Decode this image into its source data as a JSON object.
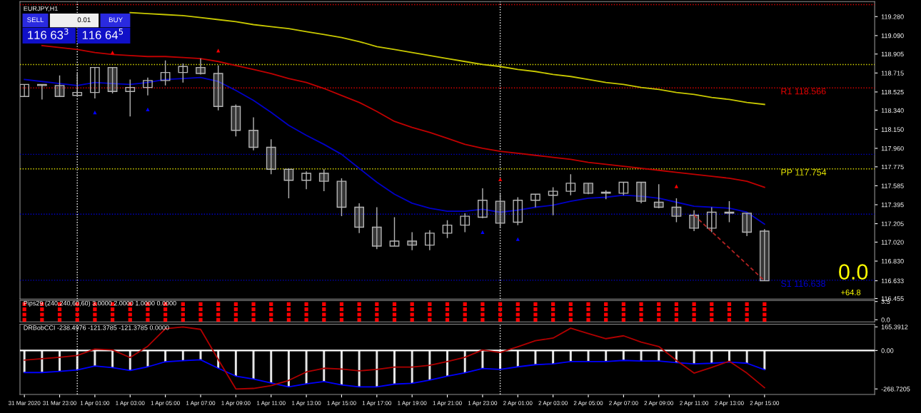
{
  "chart_data": [
    {
      "type": "candlestick",
      "title": "EURJPY,H1",
      "color": "#b4b4b4",
      "x": [
        "2020-03-31T21:00",
        "2020-03-31T22:00",
        "2020-03-31T23:00",
        "2020-04-01T00:00",
        "2020-04-01T01:00",
        "2020-04-01T02:00",
        "2020-04-01T03:00",
        "2020-04-01T04:00",
        "2020-04-01T05:00",
        "2020-04-01T06:00",
        "2020-04-01T07:00",
        "2020-04-01T08:00",
        "2020-04-01T09:00",
        "2020-04-01T10:00",
        "2020-04-01T11:00",
        "2020-04-01T12:00",
        "2020-04-01T13:00",
        "2020-04-01T14:00",
        "2020-04-01T15:00",
        "2020-04-01T16:00",
        "2020-04-01T17:00",
        "2020-04-01T18:00",
        "2020-04-01T19:00",
        "2020-04-01T20:00",
        "2020-04-01T21:00",
        "2020-04-01T22:00",
        "2020-04-01T23:00",
        "2020-04-02T00:00",
        "2020-04-02T01:00",
        "2020-04-02T02:00",
        "2020-04-02T03:00",
        "2020-04-02T04:00",
        "2020-04-02T05:00",
        "2020-04-02T06:00",
        "2020-04-02T07:00",
        "2020-04-02T08:00",
        "2020-04-02T09:00",
        "2020-04-02T10:00",
        "2020-04-02T11:00",
        "2020-04-02T12:00",
        "2020-04-02T13:00",
        "2020-04-02T14:00",
        "2020-04-02T15:00"
      ],
      "ohlc": [
        [
          118.48,
          118.6,
          118.48,
          118.6
        ],
        [
          118.6,
          118.6,
          118.45,
          118.59
        ],
        [
          118.59,
          118.69,
          118.48,
          118.48
        ],
        [
          118.49,
          118.71,
          118.49,
          118.52
        ],
        [
          118.52,
          118.77,
          118.46,
          118.77
        ],
        [
          118.77,
          118.77,
          118.51,
          118.53
        ],
        [
          118.53,
          118.65,
          118.28,
          118.57
        ],
        [
          118.57,
          118.67,
          118.49,
          118.64
        ],
        [
          118.64,
          118.84,
          118.59,
          118.72
        ],
        [
          118.72,
          118.81,
          118.62,
          118.78
        ],
        [
          118.77,
          118.86,
          118.7,
          118.71
        ],
        [
          118.71,
          118.79,
          118.34,
          118.38
        ],
        [
          118.38,
          118.4,
          118.08,
          118.14
        ],
        [
          118.14,
          118.27,
          117.94,
          117.97
        ],
        [
          117.97,
          118.05,
          117.7,
          117.75
        ],
        [
          117.75,
          117.76,
          117.46,
          117.64
        ],
        [
          117.64,
          117.73,
          117.55,
          117.71
        ],
        [
          117.71,
          117.75,
          117.53,
          117.63
        ],
        [
          117.63,
          117.66,
          117.28,
          117.37
        ],
        [
          117.37,
          117.41,
          117.11,
          117.17
        ],
        [
          117.17,
          117.37,
          116.95,
          116.98
        ],
        [
          116.98,
          117.27,
          116.98,
          117.03
        ],
        [
          117.03,
          117.12,
          116.94,
          116.99
        ],
        [
          116.99,
          117.14,
          116.94,
          117.11
        ],
        [
          117.11,
          117.24,
          117.06,
          117.19
        ],
        [
          117.19,
          117.31,
          117.12,
          117.28
        ],
        [
          117.27,
          117.56,
          117.26,
          117.44
        ],
        [
          117.43,
          117.5,
          117.16,
          117.21
        ],
        [
          117.22,
          117.47,
          117.19,
          117.44
        ],
        [
          117.44,
          117.5,
          117.37,
          117.5
        ],
        [
          117.49,
          117.57,
          117.29,
          117.53
        ],
        [
          117.53,
          117.7,
          117.49,
          117.61
        ],
        [
          117.61,
          117.61,
          117.5,
          117.51
        ],
        [
          117.52,
          117.54,
          117.45,
          117.51
        ],
        [
          117.51,
          117.62,
          117.49,
          117.62
        ],
        [
          117.62,
          117.62,
          117.41,
          117.43
        ],
        [
          117.42,
          117.6,
          117.36,
          117.37
        ],
        [
          117.37,
          117.46,
          117.22,
          117.28
        ],
        [
          117.29,
          117.34,
          117.13,
          117.16
        ],
        [
          117.16,
          117.37,
          117.12,
          117.32
        ],
        [
          117.32,
          117.43,
          117.22,
          117.31
        ],
        [
          117.31,
          117.31,
          117.08,
          117.12
        ],
        [
          117.13,
          117.15,
          116.633,
          116.633
        ]
      ],
      "series": [
        {
          "type": "line",
          "color": "#c8c800",
          "values": [
            null,
            null,
            null,
            null,
            null,
            null,
            119.32,
            119.31,
            119.3,
            119.29,
            119.27,
            119.25,
            119.23,
            119.2,
            119.18,
            119.16,
            119.13,
            119.1,
            119.07,
            119.03,
            118.98,
            118.95,
            118.92,
            118.89,
            118.86,
            118.83,
            118.8,
            118.78,
            118.75,
            118.73,
            118.7,
            118.68,
            118.65,
            118.62,
            118.6,
            118.57,
            118.55,
            118.52,
            118.5,
            118.47,
            118.45,
            118.42,
            118.4
          ]
        },
        {
          "type": "line",
          "color": "#c00000",
          "values": [
            null,
            118.99,
            118.97,
            118.95,
            118.92,
            118.9,
            118.89,
            118.88,
            118.88,
            118.87,
            118.86,
            118.83,
            118.79,
            118.75,
            118.71,
            118.66,
            118.62,
            118.56,
            118.49,
            118.42,
            118.33,
            118.23,
            118.17,
            118.12,
            118.06,
            118.0,
            117.96,
            117.93,
            117.91,
            117.89,
            117.87,
            117.85,
            117.82,
            117.8,
            117.78,
            117.76,
            117.74,
            117.72,
            117.7,
            117.68,
            117.66,
            117.63,
            117.57
          ]
        },
        {
          "type": "line",
          "color": "#0000c8",
          "values": [
            118.65,
            118.63,
            118.61,
            118.59,
            118.62,
            118.61,
            118.6,
            118.62,
            118.65,
            118.66,
            118.67,
            118.63,
            118.54,
            118.44,
            118.32,
            118.19,
            118.09,
            118.0,
            117.9,
            117.76,
            117.62,
            117.5,
            117.41,
            117.36,
            117.33,
            117.33,
            117.35,
            117.32,
            117.34,
            117.37,
            117.39,
            117.43,
            117.46,
            117.47,
            117.49,
            117.48,
            117.46,
            117.42,
            117.38,
            117.37,
            117.36,
            117.32,
            117.2
          ]
        },
        {
          "type": "scatter",
          "color": "#ff0000",
          "marker": "triangle",
          "x": [
            "2020-04-01T02:00",
            "2020-04-01T08:00",
            "2020-04-02T00:00",
            "2020-04-02T10:00"
          ],
          "values": [
            118.92,
            118.94,
            117.65,
            117.58
          ]
        },
        {
          "type": "scatter",
          "color": "#0000ff",
          "marker": "triangle",
          "x": [
            "2020-04-01T01:00",
            "2020-04-01T04:00",
            "2020-04-01T23:00",
            "2020-04-02T01:00"
          ],
          "values": [
            118.32,
            118.35,
            117.12,
            117.05
          ]
        },
        {
          "type": "line",
          "color": "#b22222",
          "line_style": "dashed",
          "x": [
            "2020-04-02T11:00",
            "2020-04-02T15:00"
          ],
          "values": [
            117.29,
            116.633
          ]
        }
      ],
      "ref_lines": [
        {
          "axis": "y",
          "value": 118.566,
          "label": "R1 118.566",
          "color": "#e00000",
          "line_style": "dotted"
        },
        {
          "axis": "y",
          "value": 117.754,
          "label": "PP 117.754",
          "color": "#e0e000",
          "line_style": "dotted"
        },
        {
          "axis": "y",
          "value": 116.638,
          "label": "S1 116.638",
          "color": "#0000d0",
          "line_style": "dotted"
        },
        {
          "axis": "y",
          "value": 119.4,
          "color": "#e00000",
          "line_style": "dotted"
        },
        {
          "axis": "y",
          "value": 118.8,
          "color": "#e0e000",
          "line_style": "dotted"
        },
        {
          "axis": "y",
          "value": 117.9,
          "color": "#0000d0",
          "line_style": "dotted"
        },
        {
          "axis": "y",
          "value": 117.3,
          "color": "#0000d0",
          "line_style": "dotted"
        },
        {
          "axis": "x",
          "value": "2020-04-01T00:00",
          "color": "#ffffff",
          "line_style": "dotted"
        },
        {
          "axis": "x",
          "value": "2020-04-02T00:00",
          "color": "#ffffff",
          "line_style": "dotted"
        }
      ],
      "xlim": [
        "2020-03-31T20:45",
        "2020-04-02T21:15"
      ],
      "ylim": [
        116.45,
        119.43
      ],
      "yticks": [
        {
          "value": 119.28,
          "label": "119.280"
        },
        {
          "value": 119.09,
          "label": "119.090"
        },
        {
          "value": 118.905,
          "label": "118.905"
        },
        {
          "value": 118.715,
          "label": "118.715"
        },
        {
          "value": 118.525,
          "label": "118.525"
        },
        {
          "value": 118.34,
          "label": "118.340"
        },
        {
          "value": 118.15,
          "label": "118.150"
        },
        {
          "value": 117.96,
          "label": "117.960"
        },
        {
          "value": 117.775,
          "label": "117.775"
        },
        {
          "value": 117.585,
          "label": "117.585"
        },
        {
          "value": 117.395,
          "label": "117.395"
        },
        {
          "value": 117.205,
          "label": "117.205"
        },
        {
          "value": 117.02,
          "label": "117.020"
        },
        {
          "value": 116.83,
          "label": "116.830"
        },
        {
          "value": 116.633,
          "label": "116.633"
        },
        {
          "value": 116.455,
          "label": "116.455"
        }
      ],
      "tick_labels": "y",
      "annotations": [
        "SELL",
        "0.01",
        "BUY",
        "116 63$^{3}$",
        "116 64$^{5}$",
        "0.0",
        "+64.8"
      ]
    },
    {
      "type": "scatter",
      "title": "Pips29 (240,240,60,60) 3.0000 2.0000 1.0000 0.0000",
      "marker": "square",
      "x": [
        "2020-03-31T21:00",
        "2020-03-31T22:00",
        "2020-03-31T23:00",
        "2020-04-01T00:00",
        "2020-04-01T01:00",
        "2020-04-01T02:00",
        "2020-04-01T03:00",
        "2020-04-01T04:00",
        "2020-04-01T05:00",
        "2020-04-01T06:00",
        "2020-04-01T07:00",
        "2020-04-01T08:00",
        "2020-04-01T09:00",
        "2020-04-01T10:00",
        "2020-04-01T11:00",
        "2020-04-01T12:00",
        "2020-04-01T13:00",
        "2020-04-01T14:00",
        "2020-04-01T15:00",
        "2020-04-01T16:00",
        "2020-04-01T17:00",
        "2020-04-01T18:00",
        "2020-04-01T19:00",
        "2020-04-01T20:00",
        "2020-04-01T21:00",
        "2020-04-01T22:00",
        "2020-04-01T23:00",
        "2020-04-02T00:00",
        "2020-04-02T01:00",
        "2020-04-02T02:00",
        "2020-04-02T03:00",
        "2020-04-02T04:00",
        "2020-04-02T05:00",
        "2020-04-02T06:00",
        "2020-04-02T07:00",
        "2020-04-02T08:00",
        "2020-04-02T09:00",
        "2020-04-02T10:00",
        "2020-04-02T11:00",
        "2020-04-02T12:00",
        "2020-04-02T13:00",
        "2020-04-02T14:00",
        "2020-04-02T15:00"
      ],
      "series": [
        {
          "color": "#ff0000",
          "values": [
            3,
            3,
            3,
            3,
            3,
            3,
            3,
            3,
            3,
            3,
            3,
            3,
            3,
            3,
            3,
            3,
            3,
            3,
            3,
            3,
            3,
            3,
            3,
            3,
            3,
            3,
            3,
            3,
            3,
            3,
            3,
            3,
            3,
            3,
            3,
            3,
            3,
            3,
            3,
            3,
            3,
            3,
            3
          ]
        },
        {
          "color": "#ff0000",
          "values": [
            2,
            2,
            2,
            2,
            2,
            2,
            2,
            2,
            2,
            2,
            2,
            2,
            2,
            2,
            2,
            2,
            2,
            2,
            2,
            2,
            2,
            2,
            2,
            2,
            2,
            2,
            2,
            2,
            2,
            2,
            2,
            2,
            2,
            2,
            2,
            2,
            2,
            2,
            2,
            2,
            2,
            2,
            2
          ]
        },
        {
          "color": "#ff0000",
          "values": [
            1,
            1,
            1,
            1,
            1,
            1,
            1,
            1,
            1,
            1,
            1,
            1,
            1,
            1,
            1,
            1,
            1,
            1,
            1,
            1,
            1,
            1,
            1,
            1,
            1,
            1,
            1,
            1,
            1,
            1,
            1,
            1,
            1,
            1,
            1,
            1,
            1,
            1,
            1,
            1,
            1,
            1,
            1
          ]
        },
        {
          "color": "#ff0000",
          "values": [
            0,
            0,
            0,
            0,
            0,
            0,
            0,
            0,
            0,
            0,
            0,
            0,
            0,
            0,
            0,
            0,
            0,
            0,
            0,
            0,
            0,
            0,
            0,
            0,
            0,
            0,
            0,
            0,
            0,
            0,
            0,
            0,
            0,
            0,
            0,
            0,
            0,
            0,
            0,
            0,
            0,
            0,
            0
          ]
        }
      ],
      "ref_lines": [
        {
          "axis": "x",
          "value": "2020-04-01T00:00",
          "color": "#ffffff",
          "line_style": "dotted"
        },
        {
          "axis": "x",
          "value": "2020-04-02T00:00",
          "color": "#ffffff",
          "line_style": "dotted"
        }
      ],
      "xlim": [
        "2020-03-31T20:45",
        "2020-04-02T21:15"
      ],
      "ylim": [
        -0.4,
        3.7
      ],
      "yticks": [
        {
          "value": 3.5,
          "label": "3.5"
        },
        {
          "value": 0,
          "label": "0.0"
        }
      ],
      "tick_labels": "y"
    },
    {
      "type": "line",
      "title": "DRBobCCI -238.4976 -121.3785 -121.3785 0.0000",
      "x": [
        "2020-03-31T21:00",
        "2020-03-31T22:00",
        "2020-03-31T23:00",
        "2020-04-01T00:00",
        "2020-04-01T01:00",
        "2020-04-01T02:00",
        "2020-04-01T03:00",
        "2020-04-01T04:00",
        "2020-04-01T05:00",
        "2020-04-01T06:00",
        "2020-04-01T07:00",
        "2020-04-01T08:00",
        "2020-04-01T09:00",
        "2020-04-01T10:00",
        "2020-04-01T11:00",
        "2020-04-01T12:00",
        "2020-04-01T13:00",
        "2020-04-01T14:00",
        "2020-04-01T15:00",
        "2020-04-01T16:00",
        "2020-04-01T17:00",
        "2020-04-01T18:00",
        "2020-04-01T19:00",
        "2020-04-01T20:00",
        "2020-04-01T21:00",
        "2020-04-01T22:00",
        "2020-04-01T23:00",
        "2020-04-02T00:00",
        "2020-04-02T01:00",
        "2020-04-02T02:00",
        "2020-04-02T03:00",
        "2020-04-02T04:00",
        "2020-04-02T05:00",
        "2020-04-02T06:00",
        "2020-04-02T07:00",
        "2020-04-02T08:00",
        "2020-04-02T09:00",
        "2020-04-02T10:00",
        "2020-04-02T11:00",
        "2020-04-02T12:00",
        "2020-04-02T13:00",
        "2020-04-02T14:00",
        "2020-04-02T15:00"
      ],
      "series": [
        {
          "type": "bar",
          "color": "#e6e6e6",
          "values": [
            -154,
            -154,
            -146,
            -136,
            -108,
            -120,
            -140,
            -114,
            -79,
            -71,
            -65,
            -124,
            -179,
            -199,
            -227,
            -254,
            -233,
            -217,
            -241,
            -254,
            -254,
            -235,
            -229,
            -207,
            -179,
            -156,
            -126,
            -132,
            -114,
            -99,
            -93,
            -77,
            -77,
            -77,
            -69,
            -73,
            -73,
            -85,
            -93,
            -89,
            -81,
            -89,
            -134
          ]
        },
        {
          "type": "line",
          "color": "#0000ff",
          "values": [
            -154,
            -154,
            -146,
            -136,
            -108,
            -120,
            -140,
            -114,
            -79,
            -71,
            -65,
            -124,
            -179,
            -199,
            -227,
            -254,
            -233,
            -217,
            -241,
            -254,
            -254,
            -235,
            -229,
            -207,
            -179,
            -156,
            -126,
            -132,
            -114,
            -99,
            -93,
            -77,
            -77,
            -77,
            -69,
            -73,
            -73,
            -85,
            -93,
            -89,
            -81,
            -89,
            -134
          ]
        },
        {
          "type": "line",
          "color": "#b00000",
          "values": [
            -67,
            -57,
            -47,
            -35,
            10,
            4,
            -49,
            30,
            152,
            165,
            148,
            -63,
            -269,
            -265,
            -246,
            -209,
            -150,
            -124,
            -130,
            -142,
            -132,
            -116,
            -116,
            -103,
            -77,
            -47,
            4,
            -14,
            26,
            69,
            87,
            156,
            119,
            83,
            103,
            59,
            28,
            -69,
            -158,
            -118,
            -75,
            -158,
            -260
          ]
        }
      ],
      "ref_lines": [
        {
          "axis": "y",
          "value": 0,
          "color": "#ffffff",
          "line_style": "solid"
        },
        {
          "axis": "x",
          "value": "2020-04-01T00:00",
          "color": "#ffffff",
          "line_style": "dotted"
        },
        {
          "axis": "x",
          "value": "2020-04-02T00:00",
          "color": "#ffffff",
          "line_style": "dotted"
        }
      ],
      "xlim": [
        "2020-03-31T20:45",
        "2020-04-02T21:15"
      ],
      "ylim": [
        -307,
        184
      ],
      "yticks": [
        {
          "value": 165.3912,
          "label": "165.3912"
        },
        {
          "value": 0,
          "label": "0.00"
        },
        {
          "value": -268.7205,
          "label": "-268.7205"
        }
      ],
      "xticks": [
        {
          "value": "2020-03-31T21:00",
          "label": "31 Mar 2020"
        },
        {
          "value": "2020-03-31T23:00",
          "label": "31 Mar 23:00"
        },
        {
          "value": "2020-04-01T01:00",
          "label": "1 Apr 01:00"
        },
        {
          "value": "2020-04-01T03:00",
          "label": "1 Apr 03:00"
        },
        {
          "value": "2020-04-01T05:00",
          "label": "1 Apr 05:00"
        },
        {
          "value": "2020-04-01T07:00",
          "label": "1 Apr 07:00"
        },
        {
          "value": "2020-04-01T09:00",
          "label": "1 Apr 09:00"
        },
        {
          "value": "2020-04-01T11:00",
          "label": "1 Apr 11:00"
        },
        {
          "value": "2020-04-01T13:00",
          "label": "1 Apr 13:00"
        },
        {
          "value": "2020-04-01T15:00",
          "label": "1 Apr 15:00"
        },
        {
          "value": "2020-04-01T17:00",
          "label": "1 Apr 17:00"
        },
        {
          "value": "2020-04-01T19:00",
          "label": "1 Apr 19:00"
        },
        {
          "value": "2020-04-01T21:00",
          "label": "1 Apr 21:00"
        },
        {
          "value": "2020-04-01T23:00",
          "label": "1 Apr 23:00"
        },
        {
          "value": "2020-04-02T01:00",
          "label": "2 Apr 01:00"
        },
        {
          "value": "2020-04-02T03:00",
          "label": "2 Apr 03:00"
        },
        {
          "value": "2020-04-02T05:00",
          "label": "2 Apr 05:00"
        },
        {
          "value": "2020-04-02T07:00",
          "label": "2 Apr 07:00"
        },
        {
          "value": "2020-04-02T09:00",
          "label": "2 Apr 09:00"
        },
        {
          "value": "2020-04-02T11:00",
          "label": "2 Apr 11:00"
        },
        {
          "value": "2020-04-02T13:00",
          "label": "2 Apr 13:00"
        },
        {
          "value": "2020-04-02T15:00",
          "label": "2 Apr 15:00"
        }
      ]
    }
  ]
}
